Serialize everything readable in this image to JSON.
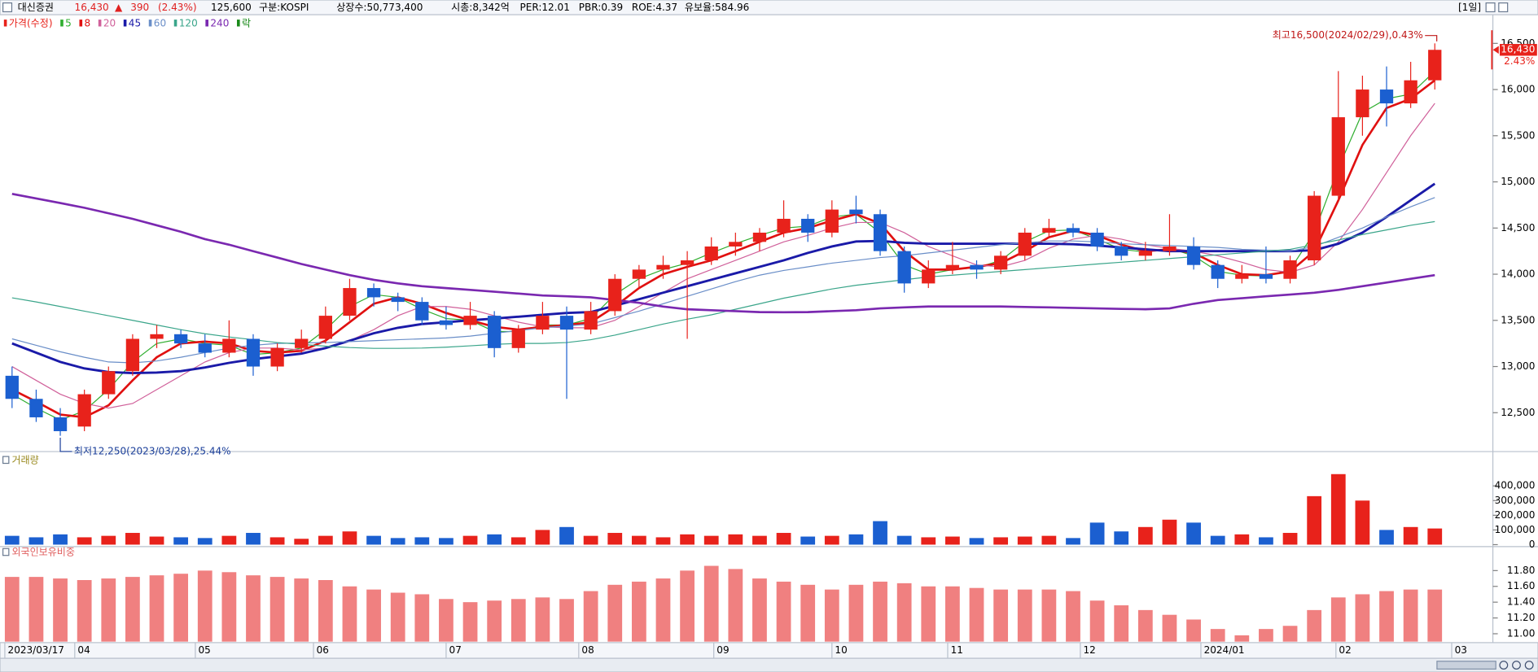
{
  "header": {
    "name": "대신증권",
    "price": "16,430",
    "arrow": "▲",
    "change": "390",
    "change_pct": "(2.43%)",
    "volume": "125,600",
    "market": "구분:KOSPI",
    "shares": "상장수:50,773,400",
    "cap": "시총:8,342억",
    "per": "PER:12.01",
    "pbr": "PBR:0.39",
    "roe": "ROE:4.37",
    "reserve": "유보율:584.96",
    "period": "[1일]"
  },
  "x_axis": {
    "xlim": [
      -0.5,
      59.7
    ],
    "xticks": [
      {
        "value": -0.3,
        "label": "2023/03/17"
      },
      {
        "value": 2.6,
        "label": "04"
      },
      {
        "value": 7.6,
        "label": "05"
      },
      {
        "value": 12.5,
        "label": "06"
      },
      {
        "value": 18.0,
        "label": "07"
      },
      {
        "value": 23.5,
        "label": "08"
      },
      {
        "value": 29.1,
        "label": "09"
      },
      {
        "value": 34.0,
        "label": "10"
      },
      {
        "value": 38.8,
        "label": "11"
      },
      {
        "value": 44.3,
        "label": "12"
      },
      {
        "value": 49.3,
        "label": "2024/01"
      },
      {
        "value": 54.9,
        "label": "02"
      },
      {
        "value": 59.7,
        "label": "03"
      }
    ]
  },
  "chart_data": [
    {
      "type": "candlestick",
      "price_name": "가격(수정)",
      "up_color": "#e8221b",
      "down_color": "#1b5fd0",
      "lock_label": "락",
      "lock_color": "#1a8a1a",
      "ylim": [
        12100,
        16800
      ],
      "yticks": [
        {
          "value": 12500,
          "label": "12,500"
        },
        {
          "value": 13000,
          "label": "13,000"
        },
        {
          "value": 13500,
          "label": "13,500"
        },
        {
          "value": 14000,
          "label": "14,000"
        },
        {
          "value": 14500,
          "label": "14,500"
        },
        {
          "value": 15000,
          "label": "15,000"
        },
        {
          "value": 15500,
          "label": "15,500"
        },
        {
          "value": 16000,
          "label": "16,000"
        },
        {
          "value": 16500,
          "label": "16,500"
        }
      ],
      "grid": false,
      "last_price_label": "16,430",
      "last_change_label": "2.43%",
      "high_annotation": "최고16,500(2024/02/29),0.43%",
      "low_annotation": "최저12,250(2023/03/28),25.44%",
      "candles": [
        [
          12900,
          13000,
          12550,
          12650
        ],
        [
          12650,
          12750,
          12400,
          12450
        ],
        [
          12450,
          12550,
          12250,
          12300
        ],
        [
          12350,
          12750,
          12300,
          12700
        ],
        [
          12700,
          13000,
          12650,
          12950
        ],
        [
          12950,
          13350,
          12900,
          13300
        ],
        [
          13300,
          13450,
          13200,
          13350
        ],
        [
          13350,
          13400,
          13200,
          13250
        ],
        [
          13250,
          13350,
          13100,
          13150
        ],
        [
          13150,
          13500,
          13100,
          13300
        ],
        [
          13300,
          13350,
          12900,
          13000
        ],
        [
          13000,
          13250,
          12950,
          13200
        ],
        [
          13200,
          13400,
          13150,
          13300
        ],
        [
          13300,
          13650,
          13250,
          13550
        ],
        [
          13550,
          13950,
          13500,
          13850
        ],
        [
          13850,
          13900,
          13650,
          13750
        ],
        [
          13750,
          13800,
          13600,
          13700
        ],
        [
          13700,
          13750,
          13450,
          13500
        ],
        [
          13500,
          13650,
          13400,
          13450
        ],
        [
          13450,
          13700,
          13400,
          13550
        ],
        [
          13550,
          13600,
          13100,
          13200
        ],
        [
          13200,
          13450,
          13150,
          13400
        ],
        [
          13400,
          13700,
          13350,
          13550
        ],
        [
          13550,
          13650,
          12650,
          13400
        ],
        [
          13400,
          13700,
          13350,
          13600
        ],
        [
          13600,
          14000,
          13550,
          13950
        ],
        [
          13950,
          14100,
          13850,
          14050
        ],
        [
          14050,
          14200,
          13950,
          14100
        ],
        [
          14100,
          14250,
          13300,
          14150
        ],
        [
          14150,
          14400,
          14100,
          14300
        ],
        [
          14300,
          14450,
          14200,
          14350
        ],
        [
          14350,
          14500,
          14250,
          14450
        ],
        [
          14450,
          14800,
          14400,
          14600
        ],
        [
          14600,
          14650,
          14350,
          14450
        ],
        [
          14450,
          14800,
          14400,
          14700
        ],
        [
          14700,
          14850,
          14550,
          14650
        ],
        [
          14650,
          14700,
          14200,
          14250
        ],
        [
          14250,
          14300,
          13800,
          13900
        ],
        [
          13900,
          14150,
          13850,
          14050
        ],
        [
          14050,
          14350,
          14000,
          14100
        ],
        [
          14100,
          14150,
          13950,
          14050
        ],
        [
          14050,
          14250,
          14000,
          14200
        ],
        [
          14200,
          14500,
          14150,
          14450
        ],
        [
          14450,
          14600,
          14400,
          14500
        ],
        [
          14500,
          14550,
          14400,
          14450
        ],
        [
          14450,
          14500,
          14250,
          14300
        ],
        [
          14300,
          14350,
          14150,
          14200
        ],
        [
          14200,
          14350,
          14150,
          14250
        ],
        [
          14250,
          14650,
          14200,
          14300
        ],
        [
          14300,
          14400,
          14050,
          14100
        ],
        [
          14100,
          14150,
          13850,
          13950
        ],
        [
          13950,
          14100,
          13900,
          14000
        ],
        [
          14000,
          14300,
          13900,
          13950
        ],
        [
          13950,
          14200,
          13900,
          14150
        ],
        [
          14150,
          14900,
          14100,
          14850
        ],
        [
          14850,
          16200,
          14800,
          15700
        ],
        [
          15700,
          16150,
          15500,
          16000
        ],
        [
          16000,
          16250,
          15600,
          15850
        ],
        [
          15850,
          16300,
          15800,
          16100
        ],
        [
          16100,
          16500,
          16000,
          16430
        ]
      ],
      "series": [
        {
          "name": "5",
          "color": "#2fae2f",
          "width": 1,
          "values": [
            12700,
            12550,
            12420,
            12520,
            12750,
            13050,
            13250,
            13300,
            13250,
            13230,
            13130,
            13150,
            13200,
            13400,
            13650,
            13780,
            13750,
            13620,
            13520,
            13500,
            13380,
            13380,
            13450,
            13450,
            13520,
            13780,
            13950,
            14050,
            14120,
            14230,
            14330,
            14420,
            14500,
            14520,
            14620,
            14650,
            14450,
            14100,
            14000,
            14050,
            14070,
            14150,
            14350,
            14470,
            14480,
            14380,
            14270,
            14240,
            14280,
            14200,
            14030,
            13990,
            13980,
            14050,
            14450,
            15150,
            15750,
            15900,
            15950,
            16200
          ]
        },
        {
          "name": "8",
          "color": "#e01010",
          "width": 2.2,
          "values": [
            12750,
            12620,
            12480,
            12450,
            12580,
            12850,
            13100,
            13250,
            13270,
            13250,
            13170,
            13150,
            13170,
            13280,
            13480,
            13680,
            13750,
            13680,
            13580,
            13500,
            13430,
            13400,
            13430,
            13450,
            13480,
            13650,
            13850,
            14000,
            14080,
            14150,
            14250,
            14350,
            14450,
            14500,
            14580,
            14650,
            14550,
            14250,
            14050,
            14050,
            14080,
            14120,
            14250,
            14400,
            14470,
            14420,
            14320,
            14250,
            14270,
            14230,
            14100,
            14000,
            13990,
            14030,
            14250,
            14800,
            15400,
            15800,
            15900,
            16100
          ]
        },
        {
          "name": "20",
          "color": "#d0609a",
          "width": 1,
          "values": [
            13000,
            12850,
            12700,
            12600,
            12550,
            12600,
            12750,
            12900,
            13050,
            13150,
            13200,
            13200,
            13180,
            13200,
            13280,
            13400,
            13550,
            13650,
            13650,
            13620,
            13550,
            13480,
            13430,
            13420,
            13420,
            13500,
            13650,
            13800,
            13950,
            14050,
            14150,
            14250,
            14350,
            14420,
            14500,
            14560,
            14560,
            14450,
            14300,
            14200,
            14100,
            14080,
            14150,
            14280,
            14380,
            14420,
            14380,
            14320,
            14280,
            14250,
            14200,
            14130,
            14050,
            14020,
            14100,
            14350,
            14700,
            15100,
            15500,
            15850
          ]
        },
        {
          "name": "45",
          "color": "#1a1aa8",
          "width": 2.4,
          "values": [
            13250,
            13150,
            13050,
            12980,
            12940,
            12930,
            12935,
            12950,
            12990,
            13040,
            13080,
            13110,
            13140,
            13200,
            13280,
            13360,
            13420,
            13460,
            13480,
            13500,
            13520,
            13540,
            13560,
            13580,
            13590,
            13660,
            13730,
            13800,
            13870,
            13940,
            14010,
            14080,
            14150,
            14230,
            14300,
            14355,
            14360,
            14340,
            14330,
            14330,
            14330,
            14330,
            14330,
            14330,
            14325,
            14310,
            14290,
            14270,
            14250,
            14250,
            14250,
            14250,
            14250,
            14250,
            14260,
            14330,
            14450,
            14620,
            14800,
            14980
          ]
        },
        {
          "name": "60",
          "color": "#6a8ec8",
          "width": 1,
          "values": [
            13300,
            13230,
            13160,
            13100,
            13050,
            13040,
            13060,
            13100,
            13150,
            13200,
            13230,
            13250,
            13255,
            13260,
            13270,
            13280,
            13290,
            13300,
            13310,
            13330,
            13360,
            13390,
            13420,
            13440,
            13460,
            13530,
            13600,
            13680,
            13760,
            13840,
            13920,
            13990,
            14040,
            14080,
            14120,
            14150,
            14180,
            14200,
            14230,
            14260,
            14290,
            14320,
            14340,
            14360,
            14360,
            14350,
            14330,
            14320,
            14310,
            14300,
            14290,
            14270,
            14260,
            14250,
            14300,
            14400,
            14500,
            14620,
            14730,
            14830
          ]
        },
        {
          "name": "120",
          "color": "#3aa58a",
          "width": 1,
          "values": [
            13745,
            13700,
            13650,
            13600,
            13550,
            13500,
            13450,
            13400,
            13355,
            13320,
            13290,
            13260,
            13240,
            13220,
            13205,
            13197,
            13197,
            13200,
            13210,
            13225,
            13240,
            13250,
            13250,
            13260,
            13290,
            13340,
            13400,
            13460,
            13513,
            13560,
            13620,
            13680,
            13740,
            13790,
            13840,
            13880,
            13910,
            13940,
            13970,
            13990,
            14010,
            14030,
            14050,
            14070,
            14090,
            14110,
            14130,
            14150,
            14170,
            14190,
            14210,
            14230,
            14250,
            14270,
            14320,
            14370,
            14430,
            14480,
            14530,
            14570
          ]
        },
        {
          "name": "240",
          "color": "#7a28b0",
          "width": 2.2,
          "values": [
            14870,
            14820,
            14770,
            14720,
            14660,
            14600,
            14530,
            14460,
            14380,
            14320,
            14250,
            14180,
            14110,
            14050,
            13990,
            13940,
            13900,
            13870,
            13850,
            13830,
            13810,
            13790,
            13770,
            13760,
            13750,
            13720,
            13690,
            13650,
            13620,
            13610,
            13600,
            13590,
            13587,
            13590,
            13600,
            13610,
            13630,
            13640,
            13650,
            13650,
            13650,
            13650,
            13645,
            13640,
            13635,
            13630,
            13625,
            13620,
            13630,
            13680,
            13720,
            13740,
            13760,
            13780,
            13800,
            13830,
            13870,
            13910,
            13950,
            13990
          ]
        }
      ]
    },
    {
      "type": "bar",
      "title": "거래량",
      "title_color": "#9a8a20",
      "equal_color": "#111111",
      "ylim": [
        0,
        520000
      ],
      "yticks": [
        0,
        {
          "value": 100000,
          "label": "100,000"
        },
        {
          "value": 200000,
          "label": "200,000"
        },
        {
          "value": 300000,
          "label": "300,000"
        },
        {
          "value": 400000,
          "label": "400,000"
        }
      ],
      "grid": false,
      "values": [
        60000,
        50000,
        70000,
        50000,
        60000,
        80000,
        55000,
        50000,
        45000,
        60000,
        80000,
        50000,
        40000,
        60000,
        90000,
        60000,
        45000,
        50000,
        45000,
        60000,
        70000,
        50000,
        100000,
        120000,
        60000,
        80000,
        60000,
        50000,
        70000,
        60000,
        70000,
        60000,
        80000,
        55000,
        60000,
        70000,
        160000,
        60000,
        50000,
        55000,
        45000,
        50000,
        55000,
        60000,
        45000,
        150000,
        90000,
        120000,
        170000,
        150000,
        60000,
        70000,
        50000,
        80000,
        330000,
        480000,
        300000,
        100000,
        120000,
        110000
      ]
    },
    {
      "type": "bar",
      "title": "외국인보유비중",
      "title_color": "#e06060",
      "color": "#f08080",
      "ylim": [
        10.9,
        11.93
      ],
      "yticks": [
        {
          "value": 11,
          "label": "11.00"
        },
        {
          "value": 11.2,
          "label": "11.20"
        },
        {
          "value": 11.4,
          "label": "11.40"
        },
        {
          "value": 11.6,
          "label": "11.60"
        },
        {
          "value": 11.8,
          "label": "11.80"
        }
      ],
      "grid": false,
      "values": [
        11.72,
        11.72,
        11.7,
        11.68,
        11.7,
        11.72,
        11.74,
        11.76,
        11.8,
        11.78,
        11.74,
        11.72,
        11.7,
        11.68,
        11.6,
        11.56,
        11.52,
        11.5,
        11.44,
        11.4,
        11.42,
        11.44,
        11.46,
        11.44,
        11.54,
        11.62,
        11.66,
        11.7,
        11.8,
        11.86,
        11.82,
        11.7,
        11.66,
        11.62,
        11.56,
        11.62,
        11.66,
        11.64,
        11.6,
        11.6,
        11.58,
        11.56,
        11.56,
        11.56,
        11.54,
        11.42,
        11.36,
        11.3,
        11.24,
        11.18,
        11.06,
        10.98,
        11.06,
        11.1,
        11.3,
        11.46,
        11.5,
        11.54,
        11.56,
        11.56
      ]
    }
  ]
}
